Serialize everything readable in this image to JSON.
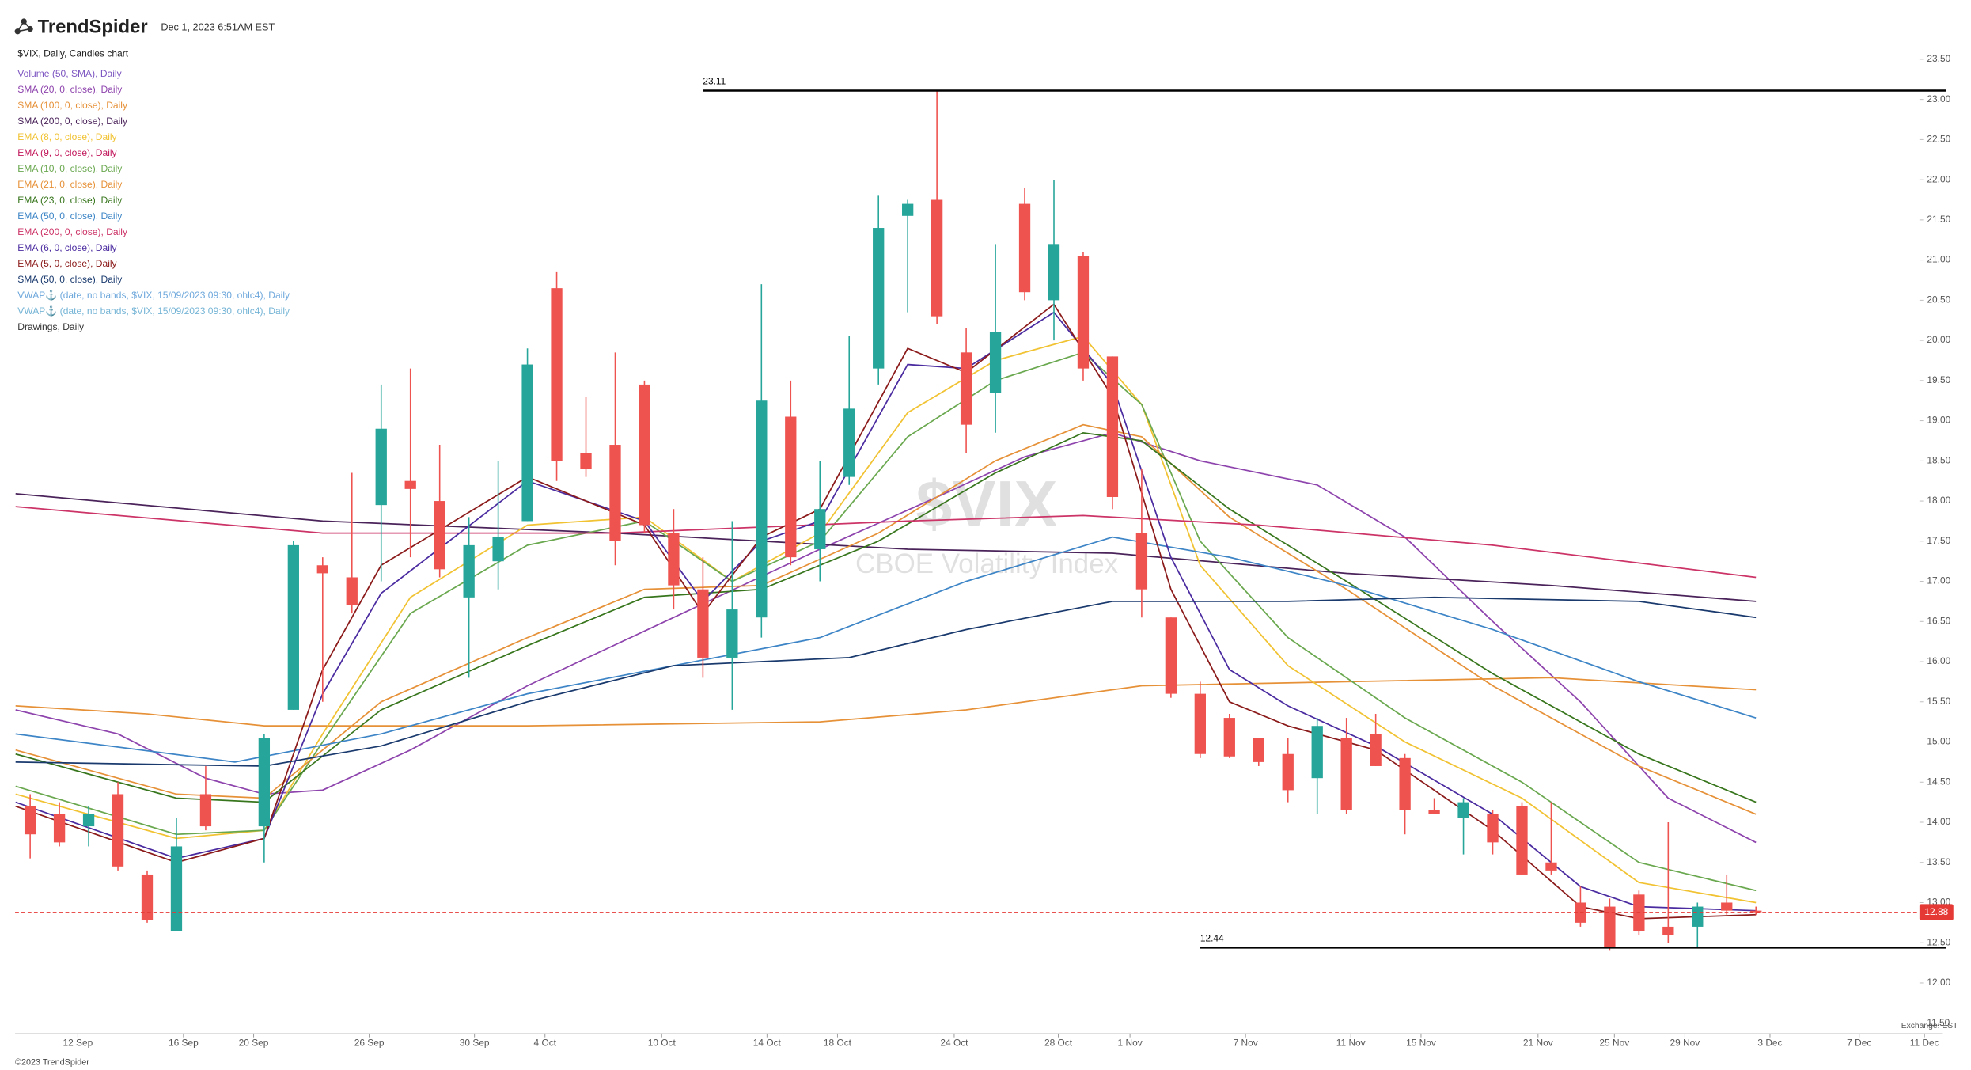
{
  "header": {
    "brand": "TrendSpider",
    "timestamp": "Dec 1, 2023 6:51AM EST",
    "footer": "©2023 TrendSpider",
    "exchange": "Exchange: EST"
  },
  "chart_data": {
    "type": "candlestick",
    "watermark": "$VIX",
    "subtitle": "CBOE Volatility Index",
    "candles": {
      "name": "$VIX, Daily, Candles chart",
      "up_color": "#26a69a",
      "down_color": "#ef5350",
      "open": [
        14.2,
        14.1,
        13.95,
        14.35,
        13.35,
        12.65,
        14.35,
        null,
        13.95,
        15.4,
        17.2,
        17.05,
        17.95,
        18.25,
        18.0,
        16.8,
        17.25,
        17.75,
        20.65,
        18.6,
        18.7,
        19.45,
        17.6,
        16.9,
        16.05,
        16.55,
        19.05,
        17.4,
        18.3,
        19.65,
        21.55,
        21.75,
        19.85,
        19.35,
        21.7,
        20.5,
        21.05,
        19.8,
        17.6,
        16.55,
        15.6,
        15.3,
        15.05,
        14.85,
        14.55,
        15.05,
        15.1,
        14.8,
        14.15,
        14.05,
        14.1,
        14.2,
        13.5,
        13.0,
        12.95,
        13.1,
        12.7,
        12.7,
        13.0,
        12.9
      ],
      "high": [
        14.35,
        14.25,
        14.2,
        14.5,
        13.4,
        14.05,
        14.7,
        null,
        15.1,
        17.5,
        17.3,
        18.35,
        19.45,
        19.65,
        18.7,
        17.8,
        18.5,
        19.9,
        20.85,
        19.3,
        19.85,
        19.5,
        17.9,
        17.3,
        17.75,
        20.7,
        19.5,
        18.5,
        20.05,
        21.8,
        21.75,
        23.11,
        20.15,
        21.2,
        21.9,
        22.0,
        21.1,
        19.8,
        18.4,
        16.55,
        15.75,
        15.35,
        15.05,
        15.05,
        15.3,
        15.3,
        15.35,
        14.85,
        14.3,
        14.3,
        14.15,
        14.25,
        14.25,
        13.2,
        13.05,
        13.15,
        14.0,
        13.0,
        13.35,
        12.95
      ],
      "low": [
        13.55,
        13.7,
        13.7,
        13.4,
        12.75,
        12.65,
        13.9,
        null,
        13.5,
        15.4,
        15.5,
        16.6,
        17.0,
        17.3,
        17.05,
        15.8,
        16.9,
        17.75,
        18.25,
        18.3,
        17.2,
        17.6,
        16.65,
        15.8,
        15.4,
        16.3,
        17.2,
        17.0,
        18.2,
        19.45,
        20.35,
        20.2,
        18.6,
        18.85,
        20.5,
        20.0,
        19.5,
        17.9,
        16.55,
        15.55,
        14.8,
        14.8,
        14.7,
        14.25,
        14.1,
        14.1,
        14.7,
        13.85,
        14.1,
        13.6,
        13.6,
        13.35,
        13.35,
        12.7,
        12.4,
        12.6,
        12.5,
        12.45,
        12.85,
        12.85
      ],
      "close": [
        13.85,
        13.75,
        14.1,
        13.45,
        12.78,
        13.7,
        13.95,
        null,
        15.05,
        17.45,
        17.1,
        16.7,
        18.9,
        18.15,
        17.15,
        17.45,
        17.55,
        19.7,
        18.5,
        18.4,
        17.5,
        17.7,
        16.95,
        16.05,
        16.65,
        19.25,
        17.3,
        17.9,
        19.15,
        21.4,
        21.7,
        20.3,
        18.95,
        20.1,
        20.6,
        21.2,
        19.65,
        18.05,
        16.9,
        15.6,
        14.85,
        14.82,
        14.75,
        14.4,
        15.2,
        14.15,
        14.7,
        14.15,
        14.1,
        14.25,
        13.75,
        13.35,
        13.4,
        12.75,
        12.44,
        12.65,
        12.6,
        12.95,
        12.9,
        12.88
      ]
    },
    "series": [
      {
        "name": "Volume (50, SMA), Daily",
        "color": "#7e57c2"
      },
      {
        "name": "SMA (20, 0, close), Daily",
        "color": "#8e44ad",
        "x": [
          -0.5,
          3,
          6,
          8,
          10,
          13,
          17,
          22,
          27,
          31,
          34,
          37,
          40,
          44,
          47,
          50,
          53,
          56,
          59
        ],
        "values": [
          15.4,
          15.1,
          14.55,
          14.35,
          14.4,
          14.9,
          15.7,
          16.55,
          17.4,
          18.05,
          18.55,
          18.85,
          18.5,
          18.2,
          17.55,
          16.5,
          15.5,
          14.3,
          13.75
        ]
      },
      {
        "name": "SMA (100, 0, close), Daily",
        "color": "#e69138",
        "x": [
          -0.5,
          4,
          8,
          17,
          27,
          32,
          38,
          45,
          52,
          59
        ],
        "values": [
          15.45,
          15.35,
          15.2,
          15.2,
          15.25,
          15.4,
          15.7,
          15.75,
          15.8,
          15.65
        ]
      },
      {
        "name": "SMA (200, 0, close), Daily",
        "color": "#4a235a",
        "x": [
          -0.5,
          10,
          20,
          25,
          30,
          37,
          45,
          52,
          59
        ],
        "values": [
          18.09,
          17.75,
          17.6,
          17.5,
          17.4,
          17.35,
          17.1,
          16.95,
          16.75
        ]
      },
      {
        "name": "EMA (8, 0, close), Daily",
        "color": "#f1c232",
        "x": [
          -0.5,
          5,
          8,
          10,
          13,
          17,
          21,
          24,
          27,
          30,
          33,
          36,
          38,
          40,
          43,
          47,
          51,
          55,
          59
        ],
        "values": [
          14.35,
          13.8,
          13.9,
          15.1,
          16.8,
          17.7,
          17.8,
          17.0,
          17.6,
          19.1,
          19.75,
          20.05,
          19.2,
          17.2,
          15.95,
          15.0,
          14.3,
          13.25,
          13.0
        ]
      },
      {
        "name": "EMA (9, 0, close), Daily",
        "color": "#c2185b"
      },
      {
        "name": "EMA (10, 0, close), Daily",
        "color": "#6aa84f",
        "x": [
          -0.5,
          5,
          8,
          10,
          13,
          17,
          21,
          24,
          27,
          30,
          33,
          36,
          38,
          40,
          43,
          47,
          51,
          55,
          59
        ],
        "values": [
          14.45,
          13.85,
          13.9,
          15.0,
          16.6,
          17.45,
          17.75,
          17.0,
          17.5,
          18.8,
          19.5,
          19.85,
          19.2,
          17.5,
          16.3,
          15.3,
          14.5,
          13.5,
          13.15
        ]
      },
      {
        "name": "EMA (21, 0, close), Daily",
        "color": "#e69138",
        "x": [
          -0.5,
          5,
          8,
          12,
          17,
          21,
          25,
          29,
          33,
          36,
          38,
          41,
          45,
          50,
          55,
          59
        ],
        "values": [
          14.9,
          14.35,
          14.3,
          15.5,
          16.3,
          16.9,
          16.95,
          17.6,
          18.5,
          18.95,
          18.8,
          17.8,
          16.9,
          15.7,
          14.7,
          14.1
        ]
      },
      {
        "name": "EMA (23, 0, close), Daily",
        "color": "#38761d",
        "x": [
          -0.5,
          5,
          8,
          12,
          17,
          21,
          25,
          29,
          33,
          36,
          38,
          41,
          45,
          50,
          55,
          59
        ],
        "values": [
          14.85,
          14.3,
          14.25,
          15.4,
          16.2,
          16.8,
          16.9,
          17.5,
          18.35,
          18.85,
          18.75,
          17.9,
          17.0,
          15.85,
          14.85,
          14.25
        ]
      },
      {
        "name": "EMA (50, 0, close), Daily",
        "color": "#3d85c6",
        "x": [
          -0.5,
          7,
          12,
          17,
          22,
          27,
          32,
          37,
          41,
          45,
          50,
          55,
          59
        ],
        "values": [
          15.1,
          14.75,
          15.1,
          15.6,
          15.95,
          16.3,
          17.0,
          17.55,
          17.3,
          16.95,
          16.4,
          15.75,
          15.3
        ]
      },
      {
        "name": "EMA (200, 0, close), Daily",
        "color": "#cc3366",
        "x": [
          -0.5,
          10,
          20,
          30,
          36,
          42,
          50,
          59
        ],
        "values": [
          17.93,
          17.6,
          17.6,
          17.75,
          17.82,
          17.7,
          17.45,
          17.05
        ]
      },
      {
        "name": "EMA (6, 0, close), Daily",
        "color": "#4b2ca0",
        "x": [
          -0.5,
          5,
          8,
          10,
          12,
          17,
          21,
          23,
          25,
          27,
          30,
          32,
          35,
          37,
          39,
          41,
          43,
          46,
          50,
          53,
          55,
          59
        ],
        "values": [
          14.25,
          13.55,
          13.8,
          15.6,
          16.85,
          18.25,
          17.75,
          16.75,
          17.5,
          17.75,
          19.7,
          19.65,
          20.35,
          19.45,
          17.3,
          15.9,
          15.45,
          14.95,
          14.1,
          13.2,
          12.95,
          12.9
        ]
      },
      {
        "name": "EMA (5, 0, close), Daily",
        "color": "#8b1a1a",
        "x": [
          -0.5,
          5,
          8,
          10,
          12,
          17,
          21,
          23,
          25,
          27,
          30,
          32,
          35,
          37,
          39,
          41,
          43,
          46,
          50,
          53,
          55,
          59
        ],
        "values": [
          14.2,
          13.5,
          13.8,
          15.9,
          17.2,
          18.3,
          17.7,
          16.6,
          17.55,
          17.9,
          19.9,
          19.6,
          20.45,
          19.3,
          16.9,
          15.5,
          15.2,
          14.9,
          13.9,
          12.95,
          12.8,
          12.85
        ]
      },
      {
        "name": "SMA (50, 0, close), Daily",
        "color": "#1a3a6e",
        "x": [
          -0.5,
          8,
          12,
          17,
          22,
          28,
          32,
          37,
          43,
          48,
          55,
          59
        ],
        "values": [
          14.75,
          14.7,
          14.95,
          15.5,
          15.95,
          16.05,
          16.4,
          16.75,
          16.75,
          16.8,
          16.75,
          16.55
        ]
      },
      {
        "name": "VWAP⚓ (date, no bands, $VIX, 15/09/2023 09:30, ohlc4), Daily",
        "color": "#6fa8dc"
      },
      {
        "name": "VWAP⚓ (date, no bands, $VIX, 15/09/2023 09:30, ohlc4), Daily",
        "color": "#76b5d6"
      },
      {
        "name": "Drawings, Daily",
        "color": "#333333"
      }
    ],
    "levels": [
      {
        "value": 23.11,
        "start": 23
      },
      {
        "value": 12.44,
        "start": 40
      }
    ],
    "last_price": 12.88,
    "last_color": "#e53935",
    "xlim": [
      -0.52,
      65.9
    ],
    "xticks": [
      {
        "value": 1.63,
        "label": "12 Sep"
      },
      {
        "value": 5.24,
        "label": "16 Sep"
      },
      {
        "value": 7.64,
        "label": "20 Sep"
      },
      {
        "value": 11.59,
        "label": "26 Sep"
      },
      {
        "value": 15.19,
        "label": "30 Sep"
      },
      {
        "value": 17.6,
        "label": "4 Oct"
      },
      {
        "value": 21.59,
        "label": "10 Oct"
      },
      {
        "value": 25.19,
        "label": "14 Oct"
      },
      {
        "value": 27.6,
        "label": "18 Oct"
      },
      {
        "value": 31.59,
        "label": "24 Oct"
      },
      {
        "value": 35.15,
        "label": "28 Oct"
      },
      {
        "value": 37.6,
        "label": "1 Nov"
      },
      {
        "value": 41.55,
        "label": "7 Nov"
      },
      {
        "value": 45.15,
        "label": "11 Nov"
      },
      {
        "value": 47.55,
        "label": "15 Nov"
      },
      {
        "value": 51.55,
        "label": "21 Nov"
      },
      {
        "value": 54.16,
        "label": "25 Nov"
      },
      {
        "value": 56.57,
        "label": "29 Nov"
      },
      {
        "value": 59.48,
        "label": "3 Dec"
      },
      {
        "value": 62.53,
        "label": "7 Dec"
      },
      {
        "value": 64.76,
        "label": "11 Dec"
      }
    ],
    "ylim": [
      11.37,
      23.69
    ],
    "yticks": [
      {
        "value": 11.5,
        "label": "11.50"
      },
      {
        "value": 12,
        "label": "12.00"
      },
      {
        "value": 12.5,
        "label": "12.50"
      },
      {
        "value": 13,
        "label": "13.00"
      },
      {
        "value": 13.5,
        "label": "13.50"
      },
      {
        "value": 14,
        "label": "14.00"
      },
      {
        "value": 14.5,
        "label": "14.50"
      },
      {
        "value": 15,
        "label": "15.00"
      },
      {
        "value": 15.5,
        "label": "15.50"
      },
      {
        "value": 16,
        "label": "16.00"
      },
      {
        "value": 16.5,
        "label": "16.50"
      },
      {
        "value": 17,
        "label": "17.00"
      },
      {
        "value": 17.5,
        "label": "17.50"
      },
      {
        "value": 18,
        "label": "18.00"
      },
      {
        "value": 18.5,
        "label": "18.50"
      },
      {
        "value": 19,
        "label": "19.00"
      },
      {
        "value": 19.5,
        "label": "19.50"
      },
      {
        "value": 20,
        "label": "20.00"
      },
      {
        "value": 20.5,
        "label": "20.50"
      },
      {
        "value": 21,
        "label": "21.00"
      },
      {
        "value": 21.5,
        "label": "21.50"
      },
      {
        "value": 22,
        "label": "22.00"
      },
      {
        "value": 22.5,
        "label": "22.50"
      },
      {
        "value": 23,
        "label": "23.00"
      },
      {
        "value": 23.5,
        "label": "23.50"
      }
    ]
  }
}
